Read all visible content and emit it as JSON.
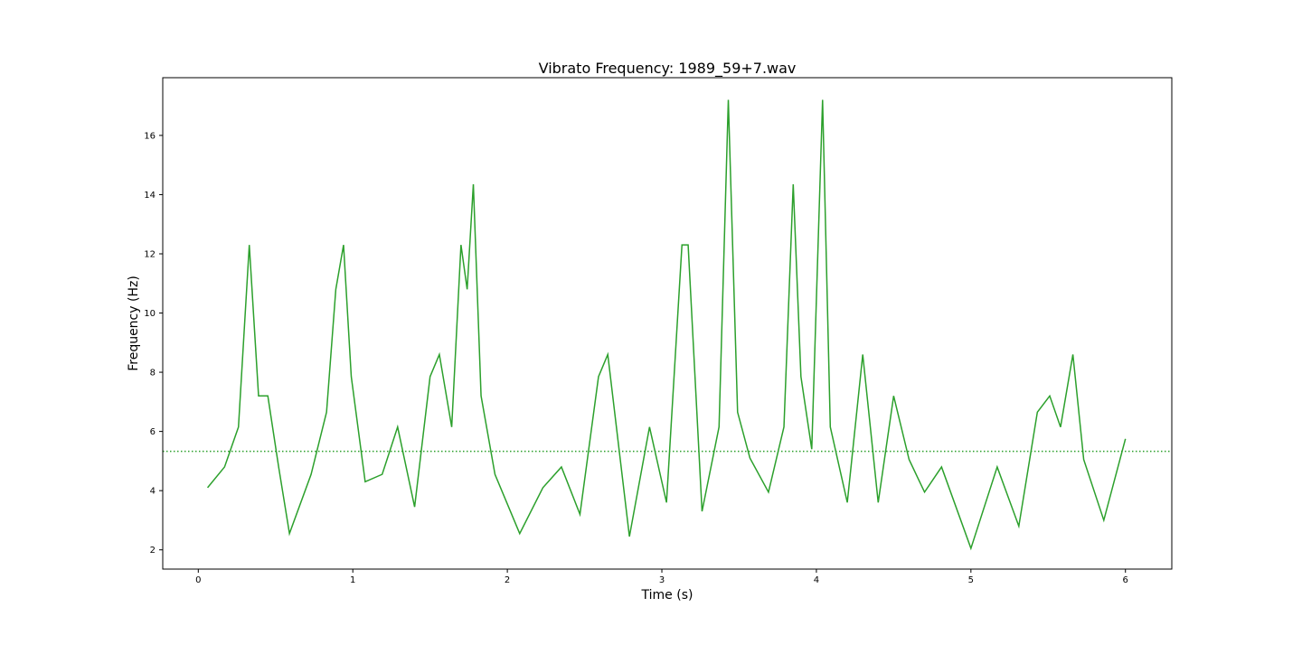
{
  "chart_data": {
    "type": "line",
    "title": "Vibrato Frequency: 1989_59+7.wav",
    "xlabel": "Time (s)",
    "ylabel": "Frequency (Hz)",
    "xlim": [
      -0.23,
      6.3
    ],
    "ylim": [
      1.35,
      17.95
    ],
    "xticks": [
      0,
      1,
      2,
      3,
      4,
      5,
      6
    ],
    "yticks": [
      2,
      4,
      6,
      8,
      10,
      12,
      14,
      16
    ],
    "grid": false,
    "line_color": "#2ca02c",
    "series": [
      {
        "x": [
          0.06,
          0.17,
          0.26,
          0.33,
          0.39,
          0.45,
          0.52,
          0.59,
          0.73,
          0.83,
          0.89,
          0.94,
          0.99,
          1.08,
          1.19,
          1.29,
          1.4,
          1.5,
          1.56,
          1.64,
          1.7,
          1.74,
          1.78,
          1.83,
          1.92,
          2.08,
          2.23,
          2.35,
          2.47,
          2.59,
          2.65,
          2.79,
          2.92,
          3.03,
          3.13,
          3.17,
          3.26,
          3.37,
          3.43,
          3.49,
          3.57,
          3.69,
          3.79,
          3.85,
          3.9,
          3.97,
          4.04,
          4.09,
          4.2,
          4.3,
          4.4,
          4.5,
          4.6,
          4.7,
          4.81,
          5.0,
          5.17,
          5.31,
          5.43,
          5.51,
          5.58,
          5.66,
          5.73,
          5.86,
          6.0
        ],
        "y": [
          4.1,
          4.8,
          6.15,
          12.3,
          7.2,
          7.2,
          4.8,
          2.55,
          4.55,
          6.65,
          10.8,
          12.3,
          7.85,
          4.3,
          4.55,
          6.15,
          3.45,
          7.85,
          8.6,
          6.15,
          12.3,
          10.8,
          14.35,
          7.2,
          4.55,
          2.55,
          4.1,
          4.8,
          3.2,
          7.85,
          8.6,
          2.45,
          6.15,
          3.6,
          12.3,
          12.3,
          3.3,
          6.15,
          17.2,
          6.65,
          5.1,
          3.95,
          6.15,
          14.35,
          7.85,
          5.4,
          17.2,
          6.15,
          3.6,
          8.6,
          3.6,
          7.2,
          5.05,
          3.95,
          4.8,
          2.05,
          4.8,
          2.8,
          6.65,
          7.2,
          6.15,
          8.6,
          5.05,
          3.0,
          5.75
        ]
      }
    ],
    "reference_line": {
      "y": 5.33,
      "style": "dotted"
    }
  }
}
